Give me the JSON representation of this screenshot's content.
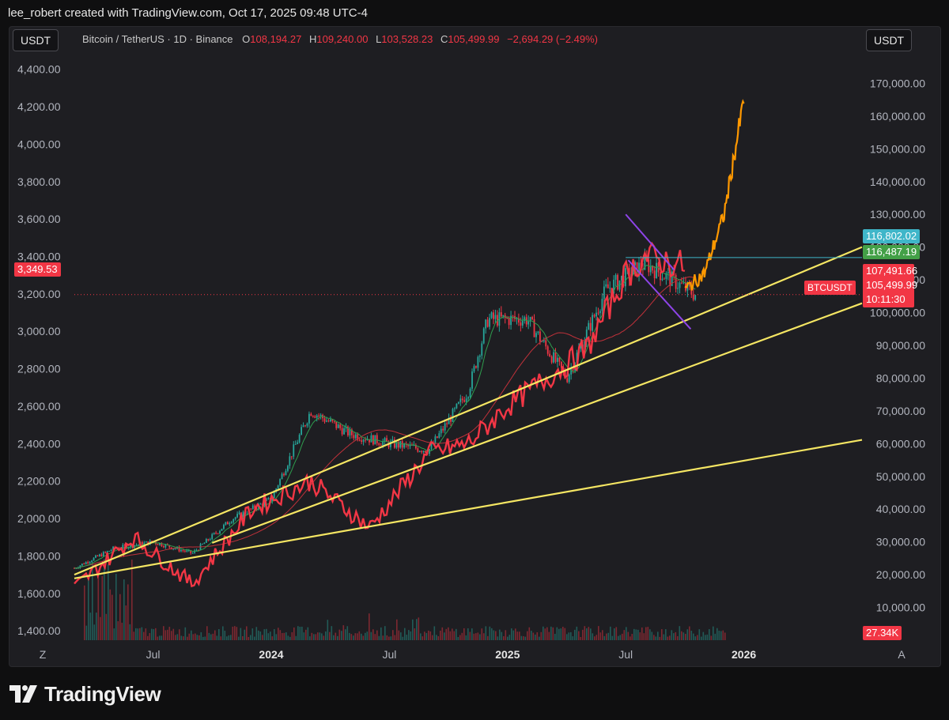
{
  "header": {
    "attribution": "lee_robert created with TradingView.com, Oct 17, 2025 09:48 UTC-4"
  },
  "toolbar": {
    "left_scale": "USDT",
    "right_scale": "USDT"
  },
  "legend": {
    "symbol": "Bitcoin / TetherUS · 1D · Binance",
    "open_label": "O",
    "open": "108,194.27",
    "high_label": "H",
    "high": "109,240.00",
    "low_label": "L",
    "low": "103,528.23",
    "close_label": "C",
    "close": "105,499.99",
    "change": "−2,694.29 (−2.49%)"
  },
  "left_axis": {
    "ticks": [
      "4,400.00",
      "4,200.00",
      "4,000.00",
      "3,800.00",
      "3,600.00",
      "3,400.00",
      "3,200.00",
      "3,000.00",
      "2,800.00",
      "2,600.00",
      "2,400.00",
      "2,200.00",
      "2,000.00",
      "1,800.00",
      "1,600.00",
      "1,400.00"
    ],
    "current_tag": "3,349.53"
  },
  "right_axis": {
    "ticks": [
      "170,000.00",
      "160,000.00",
      "150,000.00",
      "140,000.00",
      "130,000.00",
      "120,000.00",
      "110,000.00",
      "100,000.00",
      "90,000.00",
      "80,000.00",
      "70,000.00",
      "60,000.00",
      "50,000.00",
      "40,000.00",
      "30,000.00",
      "20,000.00",
      "10,000.00"
    ],
    "tags": {
      "cyan": "116,802.02",
      "green": "116,487.19",
      "red1": "107,491.66",
      "symbol": "BTCUSDT",
      "close": "105,499.99",
      "countdown": "10:11:30",
      "volume": "27.34K"
    }
  },
  "time_axis": {
    "labels": [
      "Z",
      "Jul",
      "2024",
      "Jul",
      "2025",
      "Jul",
      "2026",
      "A"
    ]
  },
  "footer": {
    "brand": "TradingView"
  },
  "colors": {
    "bull": "#26a69a",
    "bear": "#f23645",
    "ma_fast": "#2e9d4e",
    "ma_slow": "#c0313a",
    "eth_line": "#f23645",
    "projection": "#ff9800",
    "trend": "#f5e663",
    "channel": "#8e44e8",
    "cyan": "#3fb6c9",
    "green": "#43a047"
  },
  "chart_data": {
    "type": "line",
    "title": "Bitcoin / TetherUS · 1D · Binance",
    "x_range": [
      "2023-03",
      "2026-07"
    ],
    "y_right_range": [
      0,
      180000
    ],
    "y_left_range": [
      1350,
      4500
    ],
    "series": [
      {
        "name": "BTCUSDT",
        "x": [
          "2023-03",
          "2023-05",
          "2023-07",
          "2023-09",
          "2023-11",
          "2024-01",
          "2024-03",
          "2024-05",
          "2024-07",
          "2024-09",
          "2024-11",
          "2024-12",
          "2025-02",
          "2025-04",
          "2025-06",
          "2025-08",
          "2025-10-17"
        ],
        "values": [
          22000,
          28000,
          30000,
          26500,
          37000,
          43000,
          70000,
          63000,
          60000,
          58000,
          76000,
          98000,
          98000,
          80000,
          107000,
          115000,
          105500
        ]
      },
      {
        "x": [
          "2023-03",
          "2023-06",
          "2023-09",
          "2023-12",
          "2024-03",
          "2024-06",
          "2024-09",
          "2024-11",
          "2025-01",
          "2025-03",
          "2025-05",
          "2025-07",
          "2025-08",
          "2025-10"
        ],
        "values": [
          1630,
          1900,
          1650,
          2050,
          2200,
          1950,
          2350,
          2400,
          2600,
          2750,
          2900,
          3300,
          3400,
          3349.53
        ]
      },
      {
        "x": [
          "2025-10",
          "2025-11",
          "2025-12",
          "2026-01"
        ],
        "values": [
          107000,
          112000,
          130000,
          165000
        ]
      }
    ],
    "trendlines": [
      {
        "from": {
          "x": "2023-03",
          "y": 1700
        },
        "to": {
          "x": "2026-07",
          "y": 3450
        }
      },
      {
        "from": {
          "x": "2023-10",
          "y": 1870
        },
        "to": {
          "x": "2026-07",
          "y": 3150
        }
      },
      {
        "from": {
          "x": "2023-03",
          "y": 1680
        },
        "to": {
          "x": "2026-07",
          "y": 2420
        }
      }
    ],
    "volume_last": "27.34K",
    "legend": "top-left"
  }
}
